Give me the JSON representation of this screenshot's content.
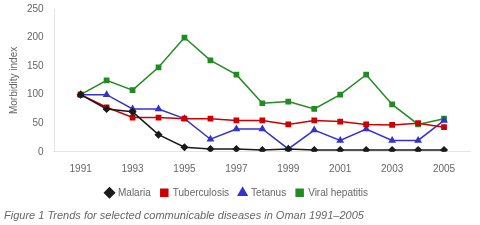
{
  "chart_data": {
    "type": "line",
    "title": "Figure 1 Trends for selected communicable diseases in Oman 1991–2005",
    "y_label": "Morbidity index",
    "x": [
      1991,
      1992,
      1993,
      1994,
      1995,
      1996,
      1997,
      1998,
      1999,
      2000,
      2001,
      2002,
      2003,
      2004,
      2005
    ],
    "series": [
      {
        "name": "Malaria",
        "color": "#1a1a1a",
        "marker": "diamond",
        "values": [
          100,
          75,
          70,
          30,
          8,
          5,
          5,
          3,
          5,
          3,
          3,
          3,
          3,
          3,
          3
        ]
      },
      {
        "name": "Tuberculosis",
        "color": "#cc0000",
        "marker": "square",
        "values": [
          100,
          78,
          60,
          60,
          58,
          58,
          55,
          55,
          48,
          55,
          53,
          48,
          47,
          50,
          43
        ]
      },
      {
        "name": "Tetanus",
        "color": "#3333cc",
        "marker": "triangle",
        "values": [
          100,
          100,
          75,
          75,
          58,
          22,
          40,
          40,
          5,
          38,
          20,
          40,
          20,
          20,
          55
        ]
      },
      {
        "name": "Viral hepatitis",
        "color": "#228B22",
        "marker": "square",
        "values": [
          100,
          125,
          108,
          148,
          200,
          160,
          135,
          85,
          88,
          75,
          100,
          135,
          83,
          48,
          58
        ]
      }
    ],
    "xlim": [
      1990,
      2006
    ],
    "xticks": [
      1991,
      1993,
      1995,
      1997,
      1999,
      2001,
      2003,
      2005
    ],
    "ylim": [
      0,
      250
    ],
    "yticks": [
      0,
      50,
      100,
      150,
      200,
      250
    ],
    "grid": false,
    "legend": "bottom"
  }
}
